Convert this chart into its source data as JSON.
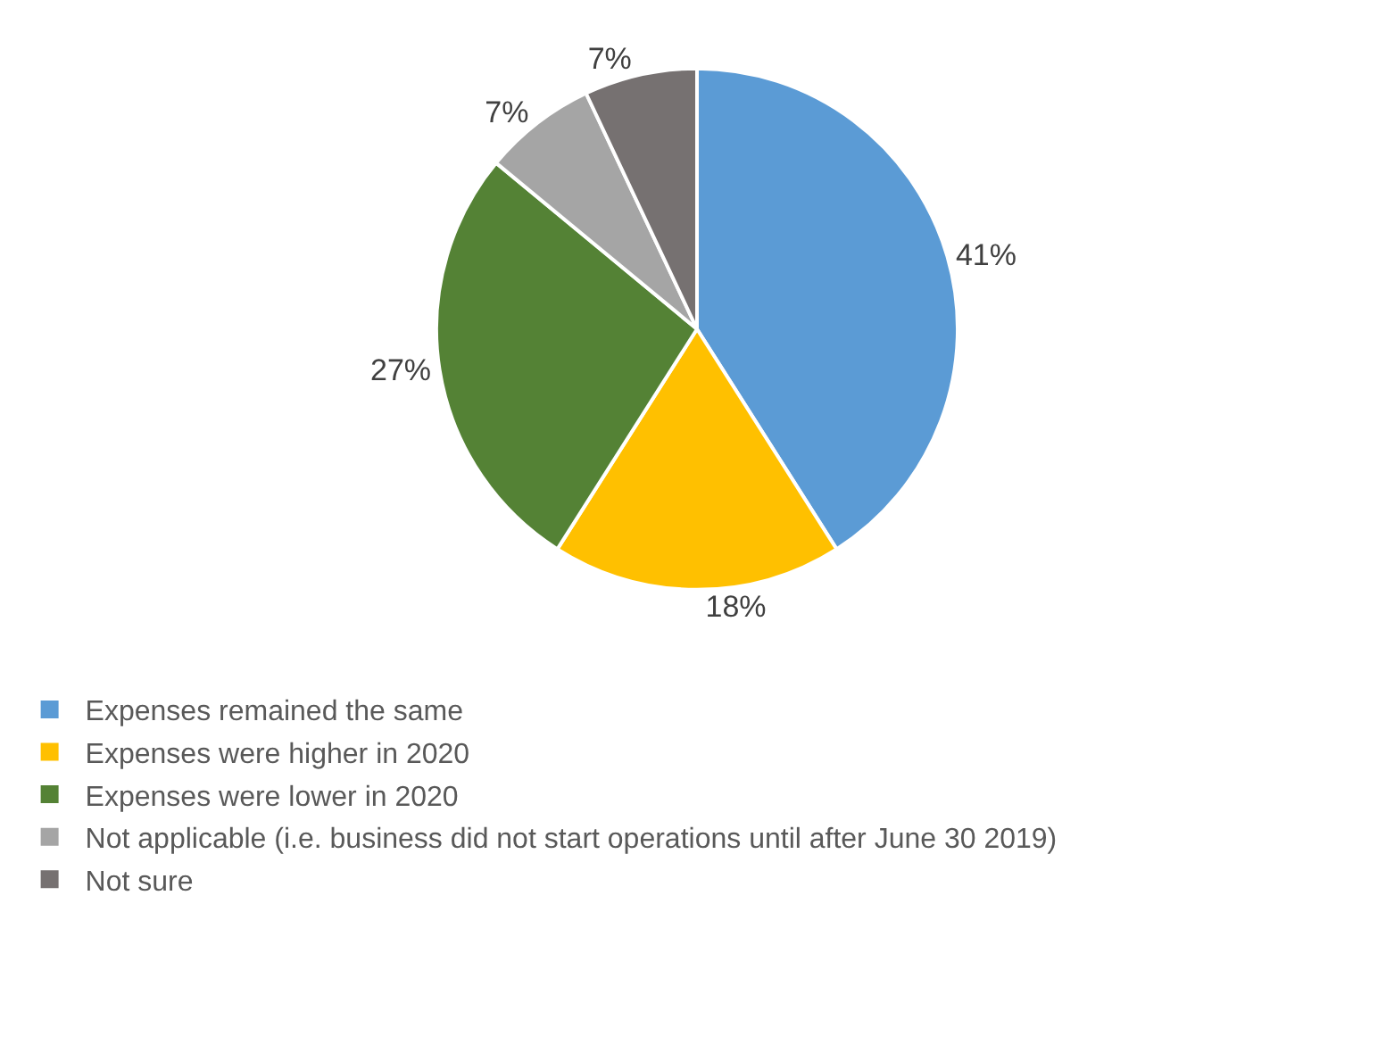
{
  "chart_data": {
    "type": "pie",
    "categories": [
      "Expenses remained the same",
      "Expenses were higher in 2020",
      "Expenses were lower in 2020",
      "Not applicable (i.e. business did not start operations until after June 30 2019)",
      "Not sure"
    ],
    "values": [
      41,
      18,
      27,
      7,
      7
    ],
    "colors": [
      "#5b9bd5",
      "#ffc000",
      "#548235",
      "#a5a5a5",
      "#767171"
    ],
    "value_labels": [
      "41%",
      "18%",
      "27%",
      "7%",
      "7%"
    ],
    "legend": "bottom"
  }
}
